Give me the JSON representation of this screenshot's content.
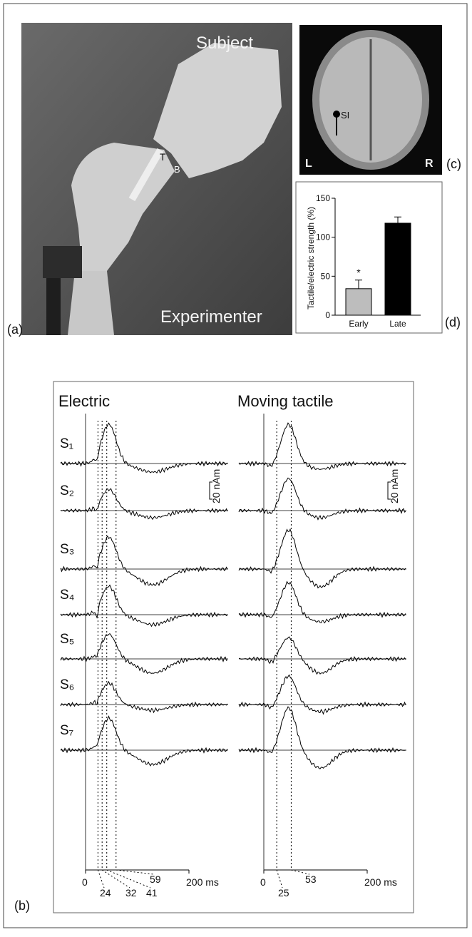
{
  "panel_a": {
    "label": "(a)",
    "subject": "Subject",
    "experimenter": "Experimenter",
    "t": "T",
    "b": "B"
  },
  "panel_c": {
    "label": "(c)",
    "si": "SI",
    "left": "L",
    "right": "R"
  },
  "panel_d": {
    "label": "(d)"
  },
  "chart_data": {
    "type": "bar",
    "ylabel": "Tactile/electric strength (%)",
    "categories": [
      "Early",
      "Late"
    ],
    "values": [
      34,
      118
    ],
    "errors": [
      11,
      8
    ],
    "colors": [
      "#bdbdbd",
      "#000000"
    ],
    "annotation": "*",
    "ylim": [
      0,
      150
    ],
    "yticks": [
      0,
      50,
      100,
      150
    ]
  },
  "panel_b": {
    "label": "(b)",
    "scale_bar": "20 nAm",
    "subjects": [
      "S₁",
      "S₂",
      "S₃",
      "S₄",
      "S₅",
      "S₆",
      "S₇"
    ],
    "electric": {
      "title": "Electric",
      "xticks": [
        0,
        {
          "value": 200,
          "label": "200 ms"
        }
      ],
      "latencies": [
        24,
        32,
        41,
        59
      ]
    },
    "tactile": {
      "title": "Moving tactile",
      "xticks": [
        0,
        {
          "value": 200,
          "label": "200 ms"
        }
      ],
      "latencies": [
        25,
        53
      ]
    }
  }
}
